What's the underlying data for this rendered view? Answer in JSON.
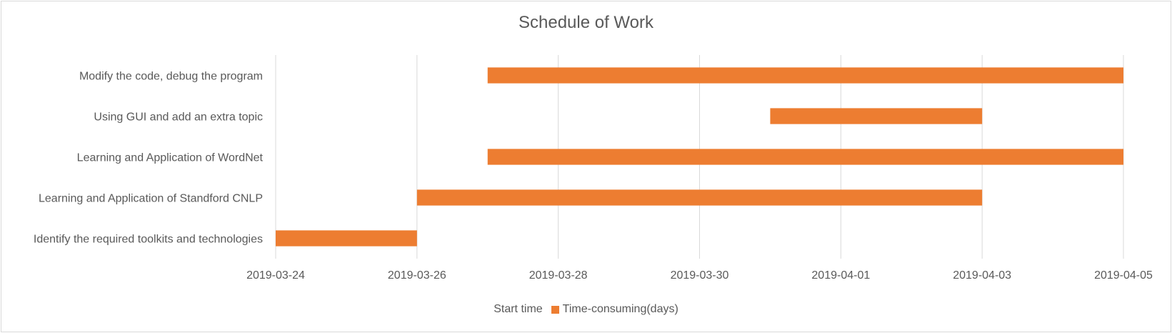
{
  "chart_data": {
    "type": "bar",
    "orientation": "horizontal",
    "stacked": true,
    "title": "Schedule of Work",
    "categories": [
      "Identify the required toolkits and technologies",
      "Learning and Application of Standford CNLP",
      "Learning and Application of WordNet",
      "Using GUI and add an extra topic",
      "Modify the code, debug the program"
    ],
    "series": [
      {
        "name": "Start time",
        "values": [
          "2019-03-24",
          "2019-03-26",
          "2019-03-27",
          "2019-03-31",
          "2019-03-27"
        ],
        "color": "none"
      },
      {
        "name": "Time-consuming(days)",
        "values": [
          2,
          8,
          9,
          3,
          9
        ],
        "color": "#ED7D31"
      }
    ],
    "x_tick_labels": [
      "2019-03-24",
      "2019-03-26",
      "2019-03-28",
      "2019-03-30",
      "2019-04-01",
      "2019-04-03",
      "2019-04-05"
    ],
    "xlim": [
      "2019-03-24",
      "2019-04-05"
    ],
    "grid": "vertical",
    "legend_position": "bottom"
  }
}
